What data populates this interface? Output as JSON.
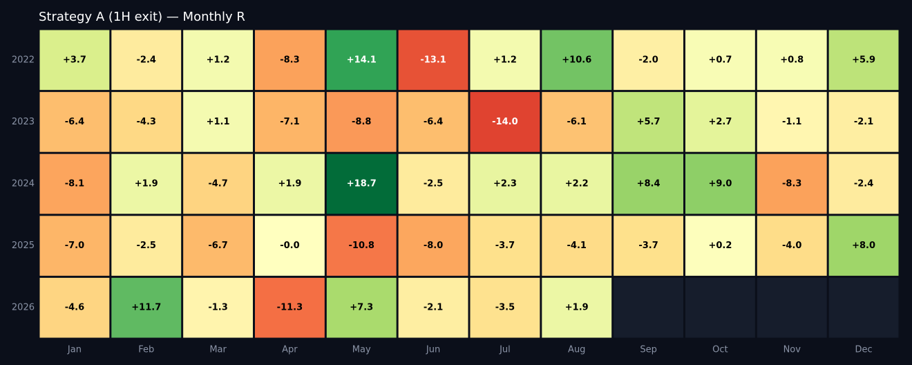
{
  "chart_data": {
    "type": "heatmap",
    "title": "Strategy A (1H exit) — Monthly R",
    "x_categories": [
      "Jan",
      "Feb",
      "Mar",
      "Apr",
      "May",
      "Jun",
      "Jul",
      "Aug",
      "Sep",
      "Oct",
      "Nov",
      "Dec"
    ],
    "y_categories": [
      "2022",
      "2023",
      "2024",
      "2025",
      "2026"
    ],
    "values": [
      [
        3.7,
        -2.4,
        1.2,
        -8.3,
        14.1,
        -13.1,
        1.2,
        10.6,
        -2.0,
        0.7,
        0.8,
        5.9
      ],
      [
        -6.4,
        -4.3,
        1.1,
        -7.1,
        -8.8,
        -6.4,
        -14.0,
        -6.1,
        5.7,
        2.7,
        -1.1,
        -2.1
      ],
      [
        -8.1,
        1.9,
        -4.7,
        1.9,
        18.7,
        -2.5,
        2.3,
        2.2,
        8.4,
        9.0,
        -8.3,
        -2.4
      ],
      [
        -7.0,
        -2.5,
        -6.7,
        -0.0,
        -10.8,
        -8.0,
        -3.7,
        -4.1,
        -3.7,
        0.2,
        -4.0,
        8.0
      ],
      [
        -4.6,
        11.7,
        -1.3,
        -11.3,
        7.3,
        -2.1,
        -3.5,
        1.9,
        null,
        null,
        null,
        null
      ]
    ],
    "labels": [
      [
        "+3.7",
        "-2.4",
        "+1.2",
        "-8.3",
        "+14.1",
        "-13.1",
        "+1.2",
        "+10.6",
        "-2.0",
        "+0.7",
        "+0.8",
        "+5.9"
      ],
      [
        "-6.4",
        "-4.3",
        "+1.1",
        "-7.1",
        "-8.8",
        "-6.4",
        "-14.0",
        "-6.1",
        "+5.7",
        "+2.7",
        "-1.1",
        "-2.1"
      ],
      [
        "-8.1",
        "+1.9",
        "-4.7",
        "+1.9",
        "+18.7",
        "-2.5",
        "+2.3",
        "+2.2",
        "+8.4",
        "+9.0",
        "-8.3",
        "-2.4"
      ],
      [
        "-7.0",
        "-2.5",
        "-6.7",
        "-0.0",
        "-10.8",
        "-8.0",
        "-3.7",
        "-4.1",
        "-3.7",
        "+0.2",
        "-4.0",
        "+8.0"
      ],
      [
        "-4.6",
        "+11.7",
        "-1.3",
        "-11.3",
        "+7.3",
        "-2.1",
        "-3.5",
        "+1.9",
        "",
        "",
        "",
        ""
      ]
    ],
    "colormap": "RdYlGn",
    "color_range": [
      -19,
      19
    ],
    "empty_cell_color": "#161d2c",
    "background_color": "#0b0f1a",
    "title_color": "#ffffff",
    "tick_color": "#8a93a6",
    "grid": false,
    "legend": "none"
  }
}
